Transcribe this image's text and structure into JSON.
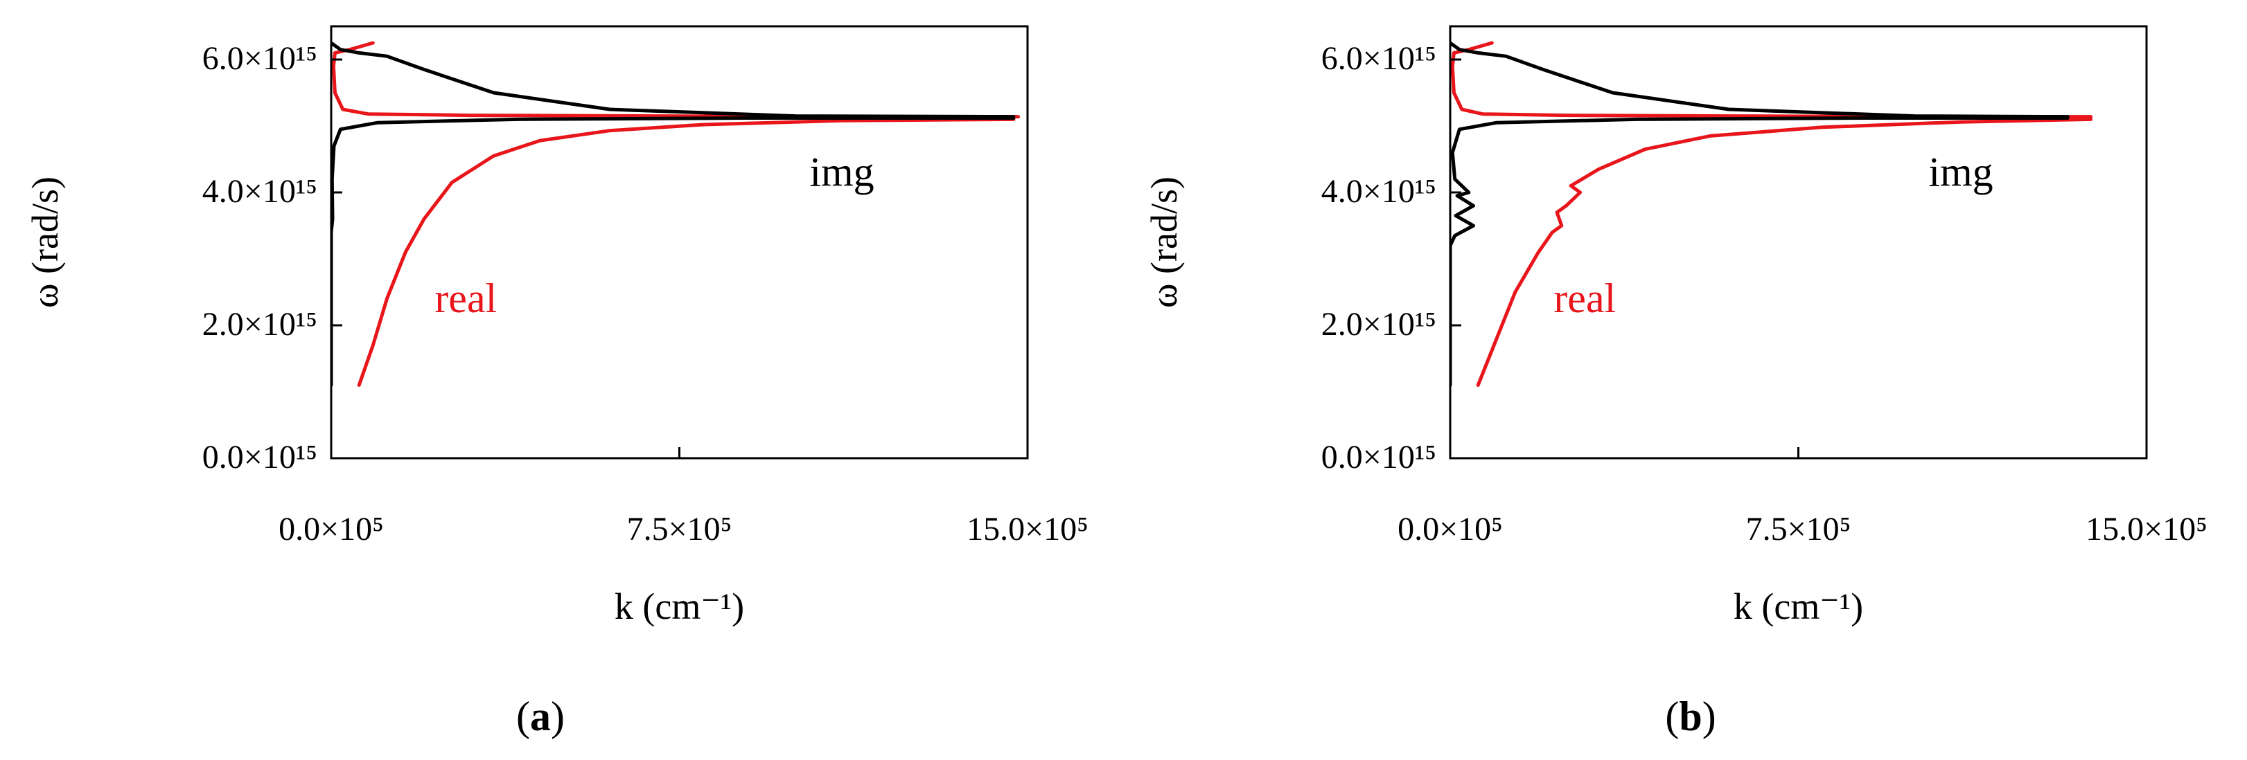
{
  "chart_data": [
    {
      "type": "line",
      "panel": "(a)",
      "panel_label_letter": "a",
      "xlabel": "k (cm⁻¹)",
      "ylabel": "ω (rad/s)",
      "xlim": [
        0,
        1500000
      ],
      "ylim": [
        0,
        6500000000000000
      ],
      "x_ticks": [
        0,
        750000,
        1500000
      ],
      "x_tick_labels": [
        "0.0×10⁵",
        "7.5×10⁵",
        "15.0×10⁵"
      ],
      "y_ticks": [
        0,
        2000000000000000,
        4000000000000000,
        6000000000000000
      ],
      "y_tick_labels": [
        "0.0×10¹⁵",
        "2.0×10¹⁵",
        "4.0×10¹⁵",
        "6.0×10¹⁵"
      ],
      "series": [
        {
          "name": "real",
          "color": "#e8161b",
          "points": [
            [
              60000,
              1100000000000000
            ],
            [
              90000,
              1700000000000000
            ],
            [
              120000,
              2400000000000000
            ],
            [
              160000,
              3100000000000000
            ],
            [
              200000,
              3600000000000000
            ],
            [
              260000,
              4150000000000000
            ],
            [
              350000,
              4550000000000000
            ],
            [
              450000,
              4780000000000000
            ],
            [
              600000,
              4930000000000000
            ],
            [
              800000,
              5020000000000000
            ],
            [
              1100000,
              5080000000000000
            ],
            [
              1470000,
              5100000000000000
            ]
          ]
        },
        {
          "name": "real",
          "color": "#e8161b",
          "points": [
            [
              1480000,
              5140000000000000
            ],
            [
              1100000,
              5140000000000000
            ],
            [
              700000,
              5150000000000000
            ],
            [
              300000,
              5160000000000000
            ],
            [
              80000,
              5180000000000000
            ],
            [
              25000,
              5250000000000000
            ],
            [
              8000,
              5500000000000000
            ],
            [
              5000,
              5900000000000000
            ],
            [
              8000,
              6100000000000000
            ],
            [
              40000,
              6150000000000000
            ],
            [
              90000,
              6250000000000000
            ]
          ]
        },
        {
          "name": "img",
          "color": "#000000",
          "points": [
            [
              0,
              1100000000000000
            ],
            [
              0,
              3400000000000000
            ],
            [
              3000,
              3600000000000000
            ],
            [
              2000,
              4200000000000000
            ],
            [
              6000,
              4700000000000000
            ],
            [
              20000,
              4950000000000000
            ],
            [
              100000,
              5050000000000000
            ],
            [
              400000,
              5100000000000000
            ],
            [
              900000,
              5120000000000000
            ],
            [
              1470000,
              5120000000000000
            ]
          ]
        },
        {
          "name": "img",
          "color": "#000000",
          "points": [
            [
              1470000,
              5140000000000000
            ],
            [
              1000000,
              5150000000000000
            ],
            [
              600000,
              5250000000000000
            ],
            [
              350000,
              5500000000000000
            ],
            [
              200000,
              5850000000000000
            ],
            [
              120000,
              6050000000000000
            ],
            [
              60000,
              6100000000000000
            ],
            [
              20000,
              6150000000000000
            ],
            [
              0,
              6250000000000000
            ]
          ]
        }
      ],
      "annotations": [
        {
          "text": "img",
          "x": 1100000,
          "y": 4100000000000000,
          "color": "#000000"
        },
        {
          "text": "real",
          "x": 290000,
          "y": 2200000000000000,
          "color": "#e8161b"
        }
      ]
    },
    {
      "type": "line",
      "panel": "(b)",
      "panel_label_letter": "b",
      "xlabel": "k (cm⁻¹)",
      "ylabel": "ω (rad/s)",
      "xlim": [
        0,
        1500000
      ],
      "ylim": [
        0,
        6500000000000000
      ],
      "x_ticks": [
        0,
        750000,
        1500000
      ],
      "x_tick_labels": [
        "0.0×10⁵",
        "7.5×10⁵",
        "15.0×10⁵"
      ],
      "y_ticks": [
        0,
        2000000000000000,
        4000000000000000,
        6000000000000000
      ],
      "y_tick_labels": [
        "0.0×10¹⁵",
        "2.0×10¹⁵",
        "4.0×10¹⁵",
        "6.0×10¹⁵"
      ],
      "series": [
        {
          "name": "real",
          "color": "#e8161b",
          "points": [
            [
              60000,
              1100000000000000
            ],
            [
              100000,
              1800000000000000
            ],
            [
              140000,
              2500000000000000
            ],
            [
              190000,
              3100000000000000
            ],
            [
              220000,
              3400000000000000
            ],
            [
              240000,
              3500000000000000
            ],
            [
              230000,
              3700000000000000
            ],
            [
              250000,
              3800000000000000
            ],
            [
              280000,
              4000000000000000
            ],
            [
              260000,
              4100000000000000
            ],
            [
              320000,
              4350000000000000
            ],
            [
              420000,
              4650000000000000
            ],
            [
              560000,
              4850000000000000
            ],
            [
              800000,
              4980000000000000
            ],
            [
              1100000,
              5060000000000000
            ],
            [
              1380000,
              5100000000000000
            ]
          ]
        },
        {
          "name": "real",
          "color": "#e8161b",
          "points": [
            [
              1380000,
              5140000000000000
            ],
            [
              1000000,
              5140000000000000
            ],
            [
              600000,
              5150000000000000
            ],
            [
              250000,
              5160000000000000
            ],
            [
              70000,
              5180000000000000
            ],
            [
              25000,
              5250000000000000
            ],
            [
              8000,
              5500000000000000
            ],
            [
              5000,
              5900000000000000
            ],
            [
              8000,
              6100000000000000
            ],
            [
              40000,
              6150000000000000
            ],
            [
              90000,
              6250000000000000
            ]
          ]
        },
        {
          "name": "img",
          "color": "#000000",
          "points": [
            [
              0,
              1100000000000000
            ],
            [
              0,
              3200000000000000
            ],
            [
              10000,
              3350000000000000
            ],
            [
              50000,
              3500000000000000
            ],
            [
              12000,
              3650000000000000
            ],
            [
              50000,
              3800000000000000
            ],
            [
              15000,
              3950000000000000
            ],
            [
              40000,
              4000000000000000
            ],
            [
              10000,
              4200000000000000
            ],
            [
              5000,
              4600000000000000
            ],
            [
              20000,
              4950000000000000
            ],
            [
              100000,
              5050000000000000
            ],
            [
              400000,
              5100000000000000
            ],
            [
              900000,
              5120000000000000
            ],
            [
              1330000,
              5120000000000000
            ]
          ]
        },
        {
          "name": "img",
          "color": "#000000",
          "points": [
            [
              1330000,
              5140000000000000
            ],
            [
              1000000,
              5150000000000000
            ],
            [
              600000,
              5250000000000000
            ],
            [
              350000,
              5500000000000000
            ],
            [
              200000,
              5850000000000000
            ],
            [
              120000,
              6050000000000000
            ],
            [
              60000,
              6100000000000000
            ],
            [
              20000,
              6150000000000000
            ],
            [
              0,
              6250000000000000
            ]
          ]
        }
      ],
      "annotations": [
        {
          "text": "img",
          "x": 1100000,
          "y": 4100000000000000,
          "color": "#000000"
        },
        {
          "text": "real",
          "x": 290000,
          "y": 2200000000000000,
          "color": "#e8161b"
        }
      ]
    }
  ]
}
